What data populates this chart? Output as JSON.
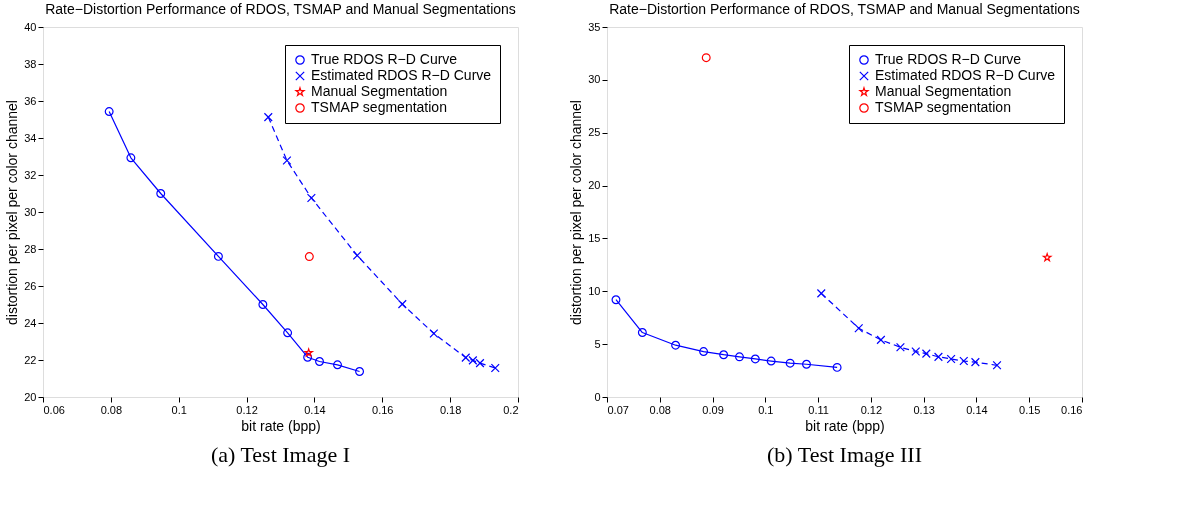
{
  "chart_data": [
    {
      "type": "line",
      "title": "Rate−Distortion Performance of RDOS, TSMAP and Manual Segmentations",
      "xlabel": "bit rate (bpp)",
      "ylabel": "distortion per pixel per color channel",
      "annotations": [
        "(a) Test Image I"
      ],
      "xlim": [
        0.06,
        0.2
      ],
      "xticks": [
        0.06,
        0.08,
        0.1,
        0.12,
        0.14,
        0.16,
        0.18,
        0.2
      ],
      "ylim": [
        20,
        40
      ],
      "yticks": [
        20,
        22,
        24,
        26,
        28,
        30,
        32,
        34,
        36,
        38,
        40
      ],
      "grid": false,
      "legend": "top right",
      "series": [
        {
          "name": "True RDOS R−D Curve",
          "color": "#0000ff",
          "marker": "circle",
          "line_style": "solid",
          "x": [
            0.0795,
            0.0859,
            0.0947,
            0.1117,
            0.1248,
            0.1321,
            0.138,
            0.1415,
            0.1468,
            0.1533
          ],
          "values": [
            35.43,
            32.93,
            31.0,
            27.6,
            25.0,
            23.47,
            22.15,
            21.92,
            21.74,
            21.38
          ]
        },
        {
          "name": "Estimated RDOS R−D Curve",
          "color": "#0000ff",
          "marker": "cross",
          "line_style": "dashed",
          "x": [
            0.1264,
            0.1319,
            0.1391,
            0.1526,
            0.1659,
            0.1752,
            0.1846,
            0.1867,
            0.1888,
            0.1933
          ],
          "values": [
            35.13,
            32.78,
            30.76,
            27.65,
            25.02,
            23.43,
            22.13,
            21.98,
            21.83,
            21.57
          ]
        },
        {
          "name": "Manual Segmentation",
          "type": "scatter",
          "color": "#ff0000",
          "marker": "star",
          "x": [
            0.1383
          ],
          "values": [
            22.39
          ]
        },
        {
          "name": "TSMAP segmentation",
          "type": "scatter",
          "color": "#ff0000",
          "marker": "circle",
          "x": [
            0.1385
          ],
          "values": [
            27.59
          ]
        }
      ]
    },
    {
      "type": "line",
      "title": "Rate−Distortion Performance of RDOS, TSMAP and Manual Segmentations",
      "xlabel": "bit rate (bpp)",
      "ylabel": "distortion per pixel per color channel",
      "annotations": [
        "(b) Test Image III"
      ],
      "xlim": [
        0.07,
        0.16
      ],
      "xticks": [
        0.07,
        0.08,
        0.09,
        0.1,
        0.11,
        0.12,
        0.13,
        0.14,
        0.15,
        0.16
      ],
      "ylim": [
        0,
        35
      ],
      "yticks": [
        0,
        5,
        10,
        15,
        20,
        25,
        30,
        35
      ],
      "grid": false,
      "legend": "top right",
      "series": [
        {
          "name": "True RDOS R−D Curve",
          "color": "#0000ff",
          "marker": "circle",
          "line_style": "solid",
          "x": [
            0.0717,
            0.0767,
            0.083,
            0.0883,
            0.0921,
            0.0951,
            0.0981,
            0.1011,
            0.1047,
            0.1078,
            0.1136
          ],
          "values": [
            9.2,
            6.1,
            4.9,
            4.3,
            4.0,
            3.8,
            3.6,
            3.4,
            3.2,
            3.1,
            2.8
          ]
        },
        {
          "name": "Estimated RDOS R−D Curve",
          "color": "#0000ff",
          "marker": "cross",
          "line_style": "dashed",
          "x": [
            0.1106,
            0.1177,
            0.1219,
            0.1256,
            0.1285,
            0.1305,
            0.1328,
            0.1352,
            0.1376,
            0.1398,
            0.1439
          ],
          "values": [
            9.8,
            6.5,
            5.4,
            4.7,
            4.3,
            4.1,
            3.8,
            3.6,
            3.4,
            3.3,
            3.0
          ]
        },
        {
          "name": "Manual Segmentation",
          "type": "scatter",
          "color": "#ff0000",
          "marker": "star",
          "x": [
            0.1534
          ],
          "values": [
            13.2
          ]
        },
        {
          "name": "TSMAP segmentation",
          "type": "scatter",
          "color": "#ff0000",
          "marker": "circle",
          "x": [
            0.0888
          ],
          "values": [
            32.1
          ]
        }
      ]
    }
  ]
}
